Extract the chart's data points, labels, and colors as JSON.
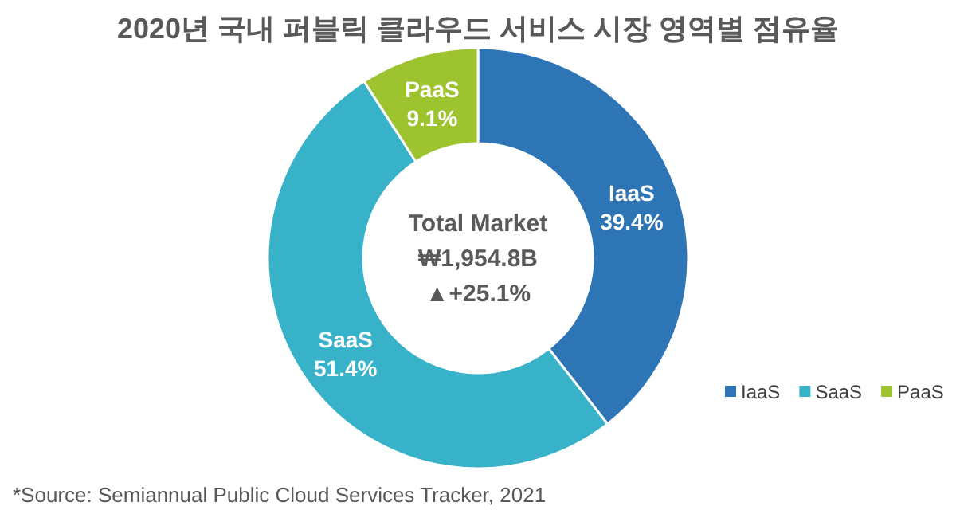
{
  "chart_data": {
    "type": "donut",
    "title": "2020년 국내 퍼블릭 클라우드 서비스 시장 영역별 점유율",
    "categories": [
      "IaaS",
      "SaaS",
      "PaaS"
    ],
    "values": [
      39.4,
      51.4,
      9.1
    ],
    "colors": [
      "#2e75b6",
      "#38b2c8",
      "#9dc32f"
    ],
    "value_labels": [
      "39.4%",
      "51.4%",
      "9.1%"
    ],
    "legend": "bottom right",
    "annotations": [
      "Total Market",
      "₩1,954.8B",
      "▲+25.1%",
      "*Source: Semiannual Public Cloud Services Tracker, 2021"
    ]
  }
}
